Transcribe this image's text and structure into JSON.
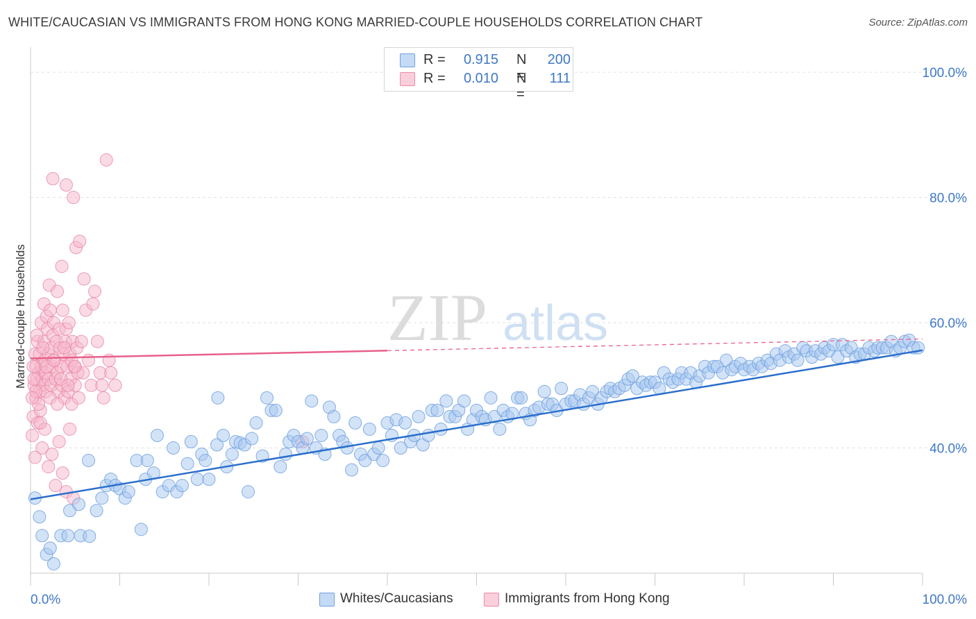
{
  "title": "WHITE/CAUCASIAN VS IMMIGRANTS FROM HONG KONG MARRIED-COUPLE HOUSEHOLDS CORRELATION CHART",
  "source": "Source: ZipAtlas.com",
  "watermark": {
    "zip": "ZIP",
    "atlas": "atlas"
  },
  "legend": {
    "r_label": "R =",
    "n_label": "N =",
    "rows": [
      {
        "r": "0.915",
        "n": "200"
      },
      {
        "r": "0.010",
        "n": "111"
      }
    ]
  },
  "colors": {
    "blue_fill": "#a8c8f0",
    "blue_stroke": "#6fa0e0",
    "blue_line": "#2a6fcc",
    "pink_fill": "#f6b8cc",
    "pink_stroke": "#ea8aa8",
    "pink_line": "#e8608a",
    "axis_text": "#3f78c7"
  },
  "chart_data": {
    "type": "scatter",
    "title": "WHITE/CAUCASIAN VS IMMIGRANTS FROM HONG KONG MARRIED-COUPLE HOUSEHOLDS CORRELATION CHART",
    "xlabel": "",
    "ylabel": "Married-couple Households",
    "xlim": [
      0,
      100
    ],
    "ylim": [
      20,
      103
    ],
    "x_tick_labels": [
      "0.0%",
      "100.0%"
    ],
    "y_ticks": [
      40,
      60,
      80,
      100
    ],
    "y_tick_labels": [
      "40.0%",
      "60.0%",
      "80.0%",
      "100.0%"
    ],
    "grid": true,
    "legend_position": "top-center",
    "series": [
      {
        "name": "Whites/Caucasians",
        "r": 0.915,
        "n": 200,
        "trend": {
          "x0": 0,
          "y0": 31.8,
          "x1": 100,
          "y1": 55.6
        },
        "points": [
          [
            0.5,
            32
          ],
          [
            1,
            29
          ],
          [
            1.3,
            26
          ],
          [
            1.8,
            23
          ],
          [
            2.2,
            24
          ],
          [
            2.6,
            21.5
          ],
          [
            3.4,
            26
          ],
          [
            4.2,
            26
          ],
          [
            4.4,
            30
          ],
          [
            5.4,
            31
          ],
          [
            5.6,
            26
          ],
          [
            6.6,
            25.9
          ],
          [
            6.5,
            38
          ],
          [
            7.4,
            30
          ],
          [
            8,
            32
          ],
          [
            8.5,
            34
          ],
          [
            9,
            35
          ],
          [
            9.5,
            34
          ],
          [
            10,
            33.5
          ],
          [
            10.6,
            32
          ],
          [
            11,
            33
          ],
          [
            11.9,
            38
          ],
          [
            12.4,
            27
          ],
          [
            12.9,
            35
          ],
          [
            13.1,
            38
          ],
          [
            13.8,
            36
          ],
          [
            14.2,
            42
          ],
          [
            14.8,
            33
          ],
          [
            15.5,
            34
          ],
          [
            16,
            40
          ],
          [
            16.4,
            33
          ],
          [
            17,
            34
          ],
          [
            17.6,
            37.5
          ],
          [
            18,
            41
          ],
          [
            18.7,
            35
          ],
          [
            19.2,
            39
          ],
          [
            19.6,
            38
          ],
          [
            20,
            35
          ],
          [
            20.9,
            40.5
          ],
          [
            21,
            48
          ],
          [
            21.6,
            42
          ],
          [
            22,
            37
          ],
          [
            22.6,
            39
          ],
          [
            23,
            41
          ],
          [
            23.5,
            40.8
          ],
          [
            24,
            40.5
          ],
          [
            24.4,
            33
          ],
          [
            24.8,
            41.5
          ],
          [
            25.3,
            44
          ],
          [
            26,
            38.7
          ],
          [
            26.5,
            48
          ],
          [
            27,
            46
          ],
          [
            27.5,
            46
          ],
          [
            28,
            37
          ],
          [
            28.6,
            39
          ],
          [
            29,
            41
          ],
          [
            29.5,
            42
          ],
          [
            30,
            41
          ],
          [
            30.5,
            40
          ],
          [
            31,
            41.5
          ],
          [
            31.5,
            47.5
          ],
          [
            32,
            40
          ],
          [
            32.6,
            42
          ],
          [
            33,
            39
          ],
          [
            33.5,
            46.5
          ],
          [
            34,
            45
          ],
          [
            34.6,
            42
          ],
          [
            35,
            41
          ],
          [
            35.5,
            40
          ],
          [
            36,
            36.5
          ],
          [
            36.4,
            44
          ],
          [
            37,
            39
          ],
          [
            37.5,
            38
          ],
          [
            38,
            43
          ],
          [
            38.5,
            39
          ],
          [
            39,
            40
          ],
          [
            39.5,
            38
          ],
          [
            40,
            44
          ],
          [
            40.5,
            42
          ],
          [
            41,
            44.5
          ],
          [
            41.5,
            40
          ],
          [
            42,
            44
          ],
          [
            42.6,
            41
          ],
          [
            43,
            42
          ],
          [
            43.5,
            45
          ],
          [
            44,
            40.5
          ],
          [
            44.6,
            42
          ],
          [
            45,
            46
          ],
          [
            45.6,
            46
          ],
          [
            46,
            43
          ],
          [
            46.6,
            47.5
          ],
          [
            47,
            45
          ],
          [
            47.6,
            45
          ],
          [
            48,
            46
          ],
          [
            48.6,
            47.5
          ],
          [
            49,
            43
          ],
          [
            49.6,
            44.5
          ],
          [
            50,
            46
          ],
          [
            50.6,
            45
          ],
          [
            51,
            44.5
          ],
          [
            51.6,
            48
          ],
          [
            52,
            45
          ],
          [
            52.6,
            43
          ],
          [
            53,
            46
          ],
          [
            53.5,
            45
          ],
          [
            54,
            45.5
          ],
          [
            54.6,
            48
          ],
          [
            55,
            48
          ],
          [
            55.5,
            45.5
          ],
          [
            56,
            44.5
          ],
          [
            56.5,
            46
          ],
          [
            57,
            46.5
          ],
          [
            57.6,
            49
          ],
          [
            58,
            47
          ],
          [
            58.5,
            47
          ],
          [
            59,
            46
          ],
          [
            59.5,
            49.5
          ],
          [
            60,
            47
          ],
          [
            60.6,
            47.5
          ],
          [
            61,
            47.5
          ],
          [
            61.6,
            48.5
          ],
          [
            62,
            47
          ],
          [
            62.6,
            48
          ],
          [
            63,
            49
          ],
          [
            63.6,
            47
          ],
          [
            64,
            48
          ],
          [
            64.6,
            49
          ],
          [
            65,
            49.5
          ],
          [
            65.5,
            49
          ],
          [
            66,
            49.5
          ],
          [
            66.6,
            50
          ],
          [
            67,
            51
          ],
          [
            67.5,
            51.5
          ],
          [
            68,
            49.5
          ],
          [
            68.6,
            50.5
          ],
          [
            69,
            50
          ],
          [
            69.5,
            50.5
          ],
          [
            70,
            50.5
          ],
          [
            70.5,
            49.5
          ],
          [
            71,
            52
          ],
          [
            71.6,
            51
          ],
          [
            72,
            50.5
          ],
          [
            72.6,
            51
          ],
          [
            73,
            52
          ],
          [
            73.5,
            51
          ],
          [
            74,
            52
          ],
          [
            74.6,
            50.5
          ],
          [
            75,
            51.5
          ],
          [
            75.6,
            53
          ],
          [
            76,
            52
          ],
          [
            76.6,
            53
          ],
          [
            77,
            53
          ],
          [
            77.6,
            52
          ],
          [
            78,
            54
          ],
          [
            78.6,
            52.5
          ],
          [
            79,
            53
          ],
          [
            79.6,
            53.5
          ],
          [
            80,
            52.5
          ],
          [
            80.6,
            53
          ],
          [
            81,
            52.5
          ],
          [
            81.6,
            53.5
          ],
          [
            82,
            53
          ],
          [
            82.6,
            54
          ],
          [
            83,
            53.5
          ],
          [
            83.6,
            55
          ],
          [
            84,
            54
          ],
          [
            84.6,
            55.5
          ],
          [
            85,
            54.5
          ],
          [
            85.6,
            55
          ],
          [
            86,
            54
          ],
          [
            86.6,
            56
          ],
          [
            87,
            55.5
          ],
          [
            87.6,
            54.5
          ],
          [
            88,
            55.5
          ],
          [
            88.6,
            55
          ],
          [
            89,
            56
          ],
          [
            89.5,
            55.5
          ],
          [
            90,
            56.5
          ],
          [
            90.5,
            54.5
          ],
          [
            91,
            56.5
          ],
          [
            91.5,
            55.5
          ],
          [
            92,
            56
          ],
          [
            92.5,
            54.5
          ],
          [
            93,
            55
          ],
          [
            93.5,
            55
          ],
          [
            94,
            56
          ],
          [
            94.6,
            55.5
          ],
          [
            95,
            56
          ],
          [
            95.5,
            56
          ],
          [
            96,
            56
          ],
          [
            96.5,
            57
          ],
          [
            97,
            55.5
          ],
          [
            97.5,
            56
          ],
          [
            98,
            57
          ],
          [
            98.5,
            57.2
          ],
          [
            99,
            56
          ],
          [
            99.5,
            56
          ]
        ]
      },
      {
        "name": "Immigrants from Hong Kong",
        "r": 0.01,
        "n": 111,
        "trend": {
          "x0": 0,
          "y0": 54.3,
          "x1": 100,
          "y1": 57.4,
          "solid_until": 40
        },
        "points": [
          [
            0.2,
            42
          ],
          [
            0.3,
            45
          ],
          [
            0.4,
            50
          ],
          [
            0.5,
            38.5
          ],
          [
            0.5,
            55
          ],
          [
            0.6,
            53
          ],
          [
            0.6,
            48
          ],
          [
            0.7,
            51
          ],
          [
            0.8,
            57
          ],
          [
            0.8,
            44
          ],
          [
            0.9,
            52
          ],
          [
            1,
            49
          ],
          [
            1,
            55
          ],
          [
            1.1,
            46
          ],
          [
            1.2,
            60
          ],
          [
            1.2,
            53
          ],
          [
            1.3,
            51
          ],
          [
            1.4,
            50
          ],
          [
            1.5,
            63
          ],
          [
            1.5,
            57
          ],
          [
            1.6,
            54
          ],
          [
            1.7,
            49
          ],
          [
            1.7,
            52
          ],
          [
            1.8,
            61
          ],
          [
            1.9,
            59
          ],
          [
            2,
            55
          ],
          [
            2,
            51
          ],
          [
            2.1,
            66
          ],
          [
            2.2,
            62
          ],
          [
            2.3,
            56
          ],
          [
            2.3,
            50
          ],
          [
            2.4,
            53
          ],
          [
            2.5,
            83
          ],
          [
            2.5,
            58
          ],
          [
            2.6,
            60
          ],
          [
            2.7,
            54
          ],
          [
            2.8,
            51
          ],
          [
            2.9,
            57
          ],
          [
            3,
            65
          ],
          [
            3,
            52
          ],
          [
            3.1,
            49
          ],
          [
            3.2,
            59
          ],
          [
            3.3,
            56
          ],
          [
            3.4,
            53
          ],
          [
            3.5,
            69
          ],
          [
            3.5,
            50
          ],
          [
            3.6,
            62
          ],
          [
            3.7,
            55
          ],
          [
            3.8,
            48
          ],
          [
            3.9,
            57
          ],
          [
            4,
            82
          ],
          [
            4,
            59
          ],
          [
            4.1,
            53
          ],
          [
            4.2,
            49
          ],
          [
            4.3,
            60
          ],
          [
            4.4,
            55
          ],
          [
            4.5,
            51
          ],
          [
            4.6,
            47
          ],
          [
            4.7,
            57
          ],
          [
            4.8,
            80
          ],
          [
            4.9,
            53
          ],
          [
            5,
            50
          ],
          [
            5.1,
            72
          ],
          [
            5.2,
            56
          ],
          [
            5.3,
            52
          ],
          [
            5.4,
            48
          ],
          [
            5.5,
            73
          ],
          [
            5.7,
            57
          ],
          [
            5.9,
            52
          ],
          [
            6,
            67
          ],
          [
            6.2,
            62
          ],
          [
            6.5,
            54
          ],
          [
            6.8,
            50
          ],
          [
            7,
            63
          ],
          [
            7.2,
            65
          ],
          [
            7.5,
            57
          ],
          [
            7.8,
            52
          ],
          [
            8,
            50
          ],
          [
            8.2,
            48
          ],
          [
            8.5,
            86
          ],
          [
            8.8,
            54
          ],
          [
            9,
            52
          ],
          [
            9.5,
            50
          ],
          [
            1.3,
            40
          ],
          [
            1.6,
            43
          ],
          [
            2,
            37
          ],
          [
            2.4,
            39
          ],
          [
            2.8,
            34
          ],
          [
            3.2,
            41
          ],
          [
            3.6,
            36
          ],
          [
            4,
            33
          ],
          [
            4.4,
            43
          ],
          [
            4.8,
            32
          ],
          [
            1.1,
            44
          ],
          [
            0.9,
            47
          ],
          [
            0.7,
            58
          ],
          [
            0.6,
            49
          ],
          [
            0.4,
            51
          ],
          [
            0.3,
            53
          ],
          [
            0.2,
            48
          ],
          [
            1.4,
            56
          ],
          [
            1.8,
            53
          ],
          [
            2.2,
            48
          ],
          [
            2.6,
            54
          ],
          [
            3,
            47
          ],
          [
            3.4,
            51
          ],
          [
            3.8,
            56
          ],
          [
            4.2,
            50
          ],
          [
            4.6,
            54
          ],
          [
            5,
            53
          ],
          [
            30.5,
            41
          ]
        ]
      }
    ]
  },
  "bottom_legend": [
    {
      "label": "Whites/Caucasians"
    },
    {
      "label": "Immigrants from Hong Kong"
    }
  ]
}
